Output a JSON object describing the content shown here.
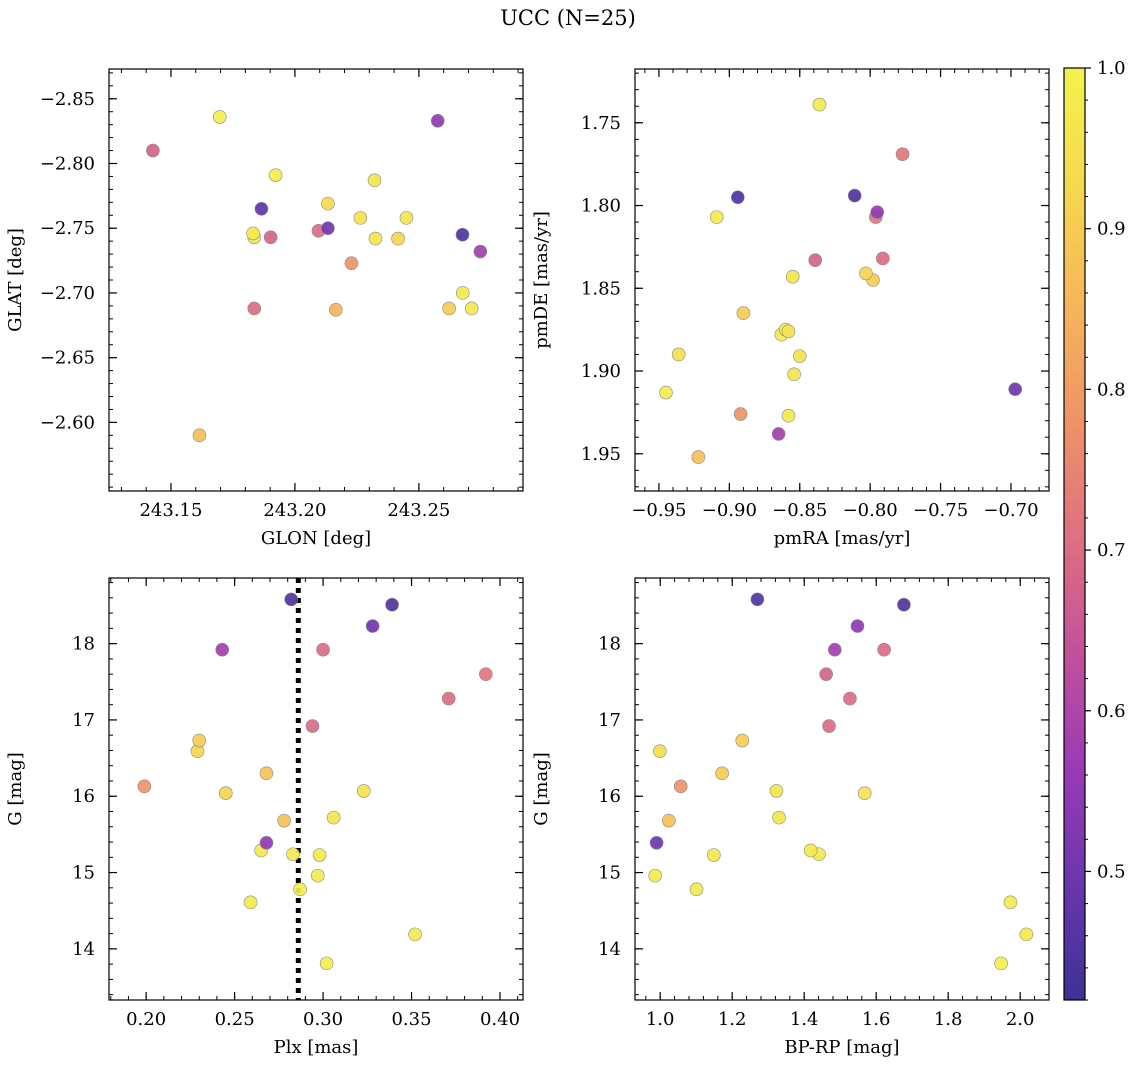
{
  "figure_title": "UCC (N=25)",
  "chart_data": [
    {
      "type": "scatter",
      "xlabel": "GLON [deg]",
      "ylabel": "GLAT [deg]",
      "xlim": [
        243.125,
        243.292
      ],
      "ylim": [
        -2.873,
        -2.547
      ],
      "x_ticks": [
        243.15,
        243.2,
        243.25
      ],
      "x_tick_labels": [
        "243.15",
        "243.20",
        "243.25"
      ],
      "y_ticks": [
        -2.6,
        -2.65,
        -2.7,
        -2.75,
        -2.8,
        -2.85
      ],
      "y_tick_labels": [
        "−2.60",
        "−2.65",
        "−2.70",
        "−2.75",
        "−2.80",
        "−2.85"
      ],
      "points": [
        {
          "x": 243.1615,
          "y": -2.59,
          "c": 0.87
        },
        {
          "x": 243.1836,
          "y": -2.688,
          "c": 0.7
        },
        {
          "x": 243.2165,
          "y": -2.687,
          "c": 0.85
        },
        {
          "x": 243.2622,
          "y": -2.688,
          "c": 0.9
        },
        {
          "x": 243.2713,
          "y": -2.688,
          "c": 0.97
        },
        {
          "x": 243.2677,
          "y": -2.7,
          "c": 0.98
        },
        {
          "x": 243.2228,
          "y": -2.723,
          "c": 0.78
        },
        {
          "x": 243.1836,
          "y": -2.743,
          "c": 0.97
        },
        {
          "x": 243.1831,
          "y": -2.746,
          "c": 0.98
        },
        {
          "x": 243.1902,
          "y": -2.743,
          "c": 0.68
        },
        {
          "x": 243.2095,
          "y": -2.748,
          "c": 0.7
        },
        {
          "x": 243.2133,
          "y": -2.75,
          "c": 0.5
        },
        {
          "x": 243.2325,
          "y": -2.742,
          "c": 0.96
        },
        {
          "x": 243.2416,
          "y": -2.742,
          "c": 0.92
        },
        {
          "x": 243.2676,
          "y": -2.745,
          "c": 0.45
        },
        {
          "x": 243.2748,
          "y": -2.732,
          "c": 0.58
        },
        {
          "x": 243.1865,
          "y": -2.765,
          "c": 0.47
        },
        {
          "x": 243.2264,
          "y": -2.758,
          "c": 0.95
        },
        {
          "x": 243.245,
          "y": -2.758,
          "c": 0.96
        },
        {
          "x": 243.2133,
          "y": -2.769,
          "c": 0.93
        },
        {
          "x": 243.1922,
          "y": -2.791,
          "c": 0.99
        },
        {
          "x": 243.2321,
          "y": -2.787,
          "c": 0.96
        },
        {
          "x": 243.1427,
          "y": -2.81,
          "c": 0.68
        },
        {
          "x": 243.2576,
          "y": -2.833,
          "c": 0.55
        },
        {
          "x": 243.1697,
          "y": -2.836,
          "c": 0.99
        }
      ]
    },
    {
      "type": "scatter",
      "xlabel": "pmRA [mas/yr]",
      "ylabel": "pmDE [mas/yr]",
      "xlim": [
        -0.967,
        -0.673
      ],
      "ylim": [
        1.7175,
        1.9725
      ],
      "x_ticks": [
        -0.95,
        -0.9,
        -0.85,
        -0.8,
        -0.75,
        -0.7
      ],
      "x_tick_labels": [
        "−0.95",
        "−0.90",
        "−0.85",
        "−0.80",
        "−0.75",
        "−0.70"
      ],
      "y_ticks": [
        1.75,
        1.8,
        1.85,
        1.9,
        1.95
      ],
      "y_tick_labels": [
        "1.75",
        "1.80",
        "1.85",
        "1.90",
        "1.95"
      ],
      "points": [
        {
          "x": -0.922,
          "y": 1.952,
          "c": 0.87
        },
        {
          "x": -0.865,
          "y": 1.938,
          "c": 0.58
        },
        {
          "x": -0.892,
          "y": 1.926,
          "c": 0.78
        },
        {
          "x": -0.858,
          "y": 1.927,
          "c": 0.97
        },
        {
          "x": -0.945,
          "y": 1.913,
          "c": 0.98
        },
        {
          "x": -0.697,
          "y": 1.911,
          "c": 0.5
        },
        {
          "x": -0.854,
          "y": 1.902,
          "c": 0.96
        },
        {
          "x": -0.936,
          "y": 1.89,
          "c": 0.94
        },
        {
          "x": -0.85,
          "y": 1.891,
          "c": 0.95
        },
        {
          "x": -0.863,
          "y": 1.878,
          "c": 0.98
        },
        {
          "x": -0.86,
          "y": 1.875,
          "c": 0.97
        },
        {
          "x": -0.858,
          "y": 1.876,
          "c": 0.96
        },
        {
          "x": -0.89,
          "y": 1.865,
          "c": 0.9
        },
        {
          "x": -0.855,
          "y": 1.843,
          "c": 0.96
        },
        {
          "x": -0.798,
          "y": 1.845,
          "c": 0.9
        },
        {
          "x": -0.803,
          "y": 1.841,
          "c": 0.92
        },
        {
          "x": -0.839,
          "y": 1.833,
          "c": 0.68
        },
        {
          "x": -0.791,
          "y": 1.832,
          "c": 0.7
        },
        {
          "x": -0.909,
          "y": 1.807,
          "c": 0.98
        },
        {
          "x": -0.796,
          "y": 1.807,
          "c": 0.72
        },
        {
          "x": -0.795,
          "y": 1.804,
          "c": 0.55
        },
        {
          "x": -0.894,
          "y": 1.795,
          "c": 0.45
        },
        {
          "x": -0.811,
          "y": 1.794,
          "c": 0.45
        },
        {
          "x": -0.777,
          "y": 1.769,
          "c": 0.72
        },
        {
          "x": -0.836,
          "y": 1.739,
          "c": 0.98
        }
      ]
    },
    {
      "type": "scatter",
      "xlabel": "Plx [mas]",
      "ylabel": "G [mag]",
      "xlim": [
        0.179,
        0.413
      ],
      "ylim": [
        18.86,
        13.33
      ],
      "vline": {
        "x": 0.286,
        "style": "dotted"
      },
      "x_ticks": [
        0.2,
        0.25,
        0.3,
        0.35,
        0.4
      ],
      "x_tick_labels": [
        "0.20",
        "0.25",
        "0.30",
        "0.35",
        "0.40"
      ],
      "y_ticks": [
        14,
        15,
        16,
        17,
        18
      ],
      "y_tick_labels": [
        "14",
        "15",
        "16",
        "17",
        "18"
      ],
      "points": [
        {
          "x": 0.302,
          "y": 13.81,
          "c": 0.99
        },
        {
          "x": 0.352,
          "y": 14.19,
          "c": 0.98
        },
        {
          "x": 0.259,
          "y": 14.61,
          "c": 0.98
        },
        {
          "x": 0.287,
          "y": 14.78,
          "c": 0.99
        },
        {
          "x": 0.297,
          "y": 14.96,
          "c": 0.98
        },
        {
          "x": 0.283,
          "y": 15.24,
          "c": 0.97
        },
        {
          "x": 0.298,
          "y": 15.23,
          "c": 0.97
        },
        {
          "x": 0.265,
          "y": 15.29,
          "c": 0.97
        },
        {
          "x": 0.268,
          "y": 15.39,
          "c": 0.55
        },
        {
          "x": 0.278,
          "y": 15.68,
          "c": 0.88
        },
        {
          "x": 0.306,
          "y": 15.72,
          "c": 0.96
        },
        {
          "x": 0.199,
          "y": 16.13,
          "c": 0.78
        },
        {
          "x": 0.245,
          "y": 16.04,
          "c": 0.92
        },
        {
          "x": 0.323,
          "y": 16.07,
          "c": 0.96
        },
        {
          "x": 0.268,
          "y": 16.3,
          "c": 0.88
        },
        {
          "x": 0.229,
          "y": 16.59,
          "c": 0.92
        },
        {
          "x": 0.23,
          "y": 16.73,
          "c": 0.9
        },
        {
          "x": 0.294,
          "y": 16.92,
          "c": 0.7
        },
        {
          "x": 0.371,
          "y": 17.28,
          "c": 0.7
        },
        {
          "x": 0.392,
          "y": 17.6,
          "c": 0.72
        },
        {
          "x": 0.243,
          "y": 17.92,
          "c": 0.58
        },
        {
          "x": 0.3,
          "y": 17.92,
          "c": 0.7
        },
        {
          "x": 0.328,
          "y": 18.23,
          "c": 0.5
        },
        {
          "x": 0.339,
          "y": 18.51,
          "c": 0.45
        },
        {
          "x": 0.282,
          "y": 18.58,
          "c": 0.45
        }
      ]
    },
    {
      "type": "scatter",
      "xlabel": "BP-RP [mag]",
      "ylabel": "G [mag]",
      "xlim": [
        0.93,
        2.08
      ],
      "ylim": [
        18.86,
        13.33
      ],
      "x_ticks": [
        1.0,
        1.2,
        1.4,
        1.6,
        1.8,
        2.0
      ],
      "x_tick_labels": [
        "1.0",
        "1.2",
        "1.4",
        "1.6",
        "1.8",
        "2.0"
      ],
      "y_ticks": [
        14,
        15,
        16,
        17,
        18
      ],
      "y_tick_labels": [
        "14",
        "15",
        "16",
        "17",
        "18"
      ],
      "points": [
        {
          "x": 1.947,
          "y": 13.81,
          "c": 0.99
        },
        {
          "x": 2.017,
          "y": 14.19,
          "c": 0.98
        },
        {
          "x": 1.973,
          "y": 14.61,
          "c": 0.98
        },
        {
          "x": 1.101,
          "y": 14.78,
          "c": 0.98
        },
        {
          "x": 0.986,
          "y": 14.96,
          "c": 0.98
        },
        {
          "x": 1.149,
          "y": 15.23,
          "c": 0.97
        },
        {
          "x": 1.441,
          "y": 15.24,
          "c": 0.97
        },
        {
          "x": 1.418,
          "y": 15.29,
          "c": 0.97
        },
        {
          "x": 0.99,
          "y": 15.39,
          "c": 0.5
        },
        {
          "x": 1.024,
          "y": 15.68,
          "c": 0.88
        },
        {
          "x": 1.33,
          "y": 15.72,
          "c": 0.96
        },
        {
          "x": 1.057,
          "y": 16.13,
          "c": 0.78
        },
        {
          "x": 1.568,
          "y": 16.04,
          "c": 0.96
        },
        {
          "x": 1.323,
          "y": 16.07,
          "c": 0.96
        },
        {
          "x": 1.172,
          "y": 16.3,
          "c": 0.9
        },
        {
          "x": 0.999,
          "y": 16.59,
          "c": 0.94
        },
        {
          "x": 1.228,
          "y": 16.73,
          "c": 0.9
        },
        {
          "x": 1.469,
          "y": 16.92,
          "c": 0.7
        },
        {
          "x": 1.527,
          "y": 17.28,
          "c": 0.7
        },
        {
          "x": 1.461,
          "y": 17.6,
          "c": 0.68
        },
        {
          "x": 1.485,
          "y": 17.92,
          "c": 0.58
        },
        {
          "x": 1.622,
          "y": 17.92,
          "c": 0.7
        },
        {
          "x": 1.548,
          "y": 18.23,
          "c": 0.55
        },
        {
          "x": 1.677,
          "y": 18.51,
          "c": 0.45
        },
        {
          "x": 1.27,
          "y": 18.58,
          "c": 0.45
        }
      ]
    }
  ],
  "colorbar": {
    "colormap": "plasma",
    "vmin": 0.42,
    "vmax": 1.0,
    "ticks": [
      0.5,
      0.6,
      0.7,
      0.8,
      0.9,
      1.0
    ],
    "tick_labels": [
      "0.5",
      "0.6",
      "0.7",
      "0.8",
      "0.9",
      "1.0"
    ],
    "colors": [
      "#3c3295",
      "#6a36ad",
      "#9b3ab6",
      "#c3519a",
      "#df7180",
      "#ef9467",
      "#f7b65a",
      "#f6d94e",
      "#f2f34c"
    ]
  }
}
